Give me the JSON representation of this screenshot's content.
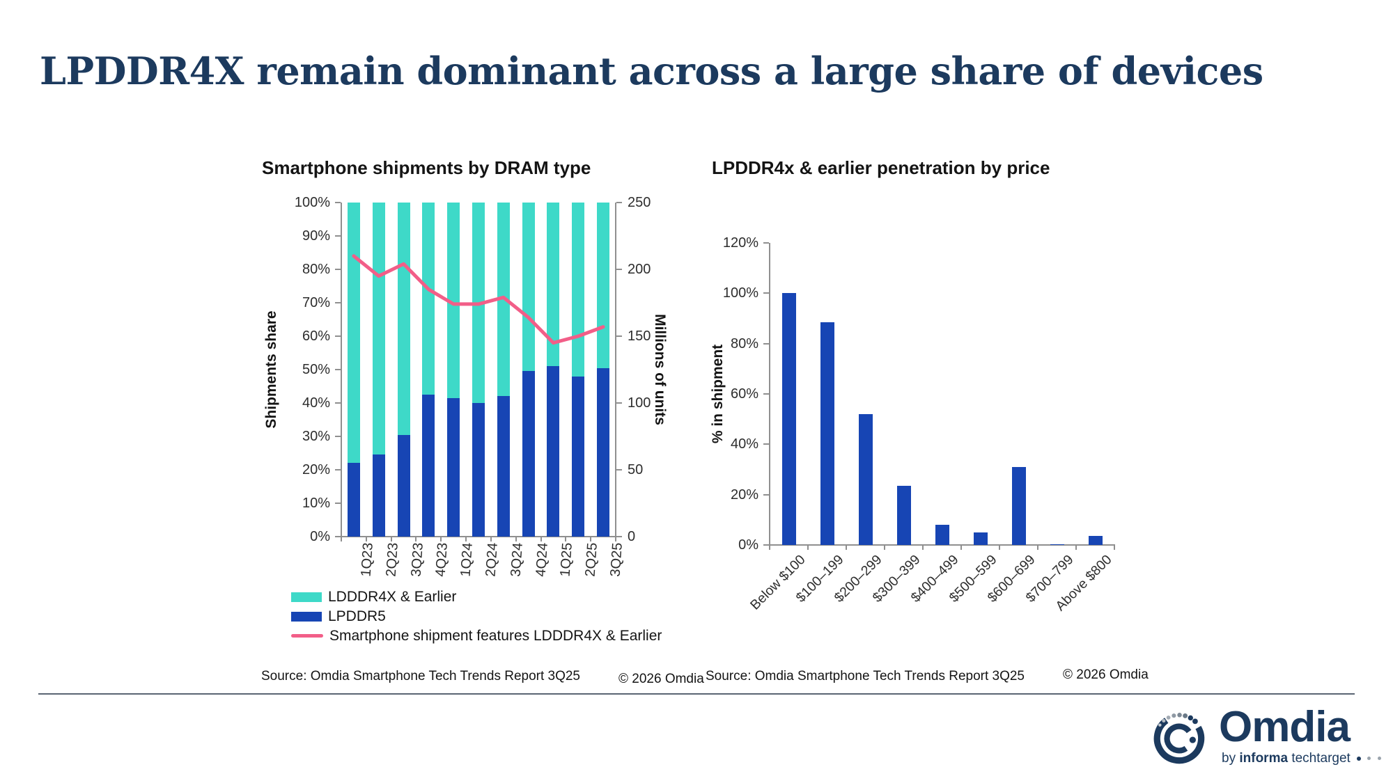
{
  "slide": {
    "title": "LPDDR4X remain dominant across a large share of devices"
  },
  "chart_data": [
    {
      "type": "bar",
      "subtype": "stacked-100-bar-with-line",
      "title": "Smartphone shipments by DRAM type",
      "categories": [
        "1Q23",
        "2Q23",
        "3Q23",
        "4Q23",
        "1Q24",
        "2Q24",
        "3Q24",
        "4Q24",
        "1Q25",
        "2Q25",
        "3Q25"
      ],
      "series": [
        {
          "name": "LDDDR4X & Earlier",
          "type": "bar",
          "stack_order": 2,
          "axis": "left",
          "color": "#3ED9C8",
          "values": [
            78,
            75.5,
            69.5,
            57.5,
            58.5,
            60,
            58,
            50.5,
            49,
            52,
            49.5
          ]
        },
        {
          "name": "LPDDR5",
          "type": "bar",
          "stack_order": 1,
          "axis": "left",
          "color": "#1745B4",
          "values": [
            22,
            24.5,
            30.5,
            42.5,
            41.5,
            40,
            42,
            49.5,
            51,
            48,
            50.5
          ]
        },
        {
          "name": "Smartphone shipment features LDDDR4X & Earlier",
          "type": "line",
          "axis": "right",
          "color": "#F25E88",
          "values": [
            210,
            195,
            204,
            185,
            174,
            174,
            179,
            164,
            145,
            150,
            157
          ]
        }
      ],
      "ylabel_left": "Shipments share",
      "ylabel_right": "Millions of units",
      "ylim_left": [
        0,
        100
      ],
      "ylim_right": [
        0,
        250
      ],
      "yticks_left": [
        "0%",
        "10%",
        "20%",
        "30%",
        "40%",
        "50%",
        "60%",
        "70%",
        "80%",
        "90%",
        "100%"
      ],
      "yticks_right": [
        "0",
        "50",
        "100",
        "150",
        "200",
        "250"
      ],
      "grid": false,
      "legend_position": "bottom-left",
      "source": "Source: Omdia Smartphone Tech Trends Report 3Q25",
      "copyright": "© 2026 Omdia"
    },
    {
      "type": "bar",
      "title": "LPDDR4x & earlier penetration by price",
      "categories": [
        "Below $100",
        "$100–199",
        "$200–299",
        "$300–399",
        "$400–499",
        "$500–599",
        "$600–699",
        "$700–799",
        "Above $800"
      ],
      "values": [
        100,
        88.5,
        52,
        23.5,
        8,
        5,
        31,
        0.2,
        3.5
      ],
      "bar_color": "#1745B4",
      "ylabel": "% in shipment",
      "ylim": [
        0,
        120
      ],
      "yticks": [
        "0%",
        "20%",
        "40%",
        "60%",
        "80%",
        "100%",
        "120%"
      ],
      "grid": false,
      "source": "Source: Omdia Smartphone Tech Trends Report 3Q25",
      "copyright": "© 2026 Omdia"
    }
  ],
  "colors": {
    "teal": "#3ED9C8",
    "blue": "#1745B4",
    "pink": "#F25E88",
    "axis": "#8F8F8F",
    "navy": "#1C3A5E",
    "footer_rule": "#5A6573"
  },
  "logo": {
    "name": "Omdia",
    "tagline_by": "by",
    "tagline_brand": "informa",
    "tagline_rest": "techtarget"
  }
}
